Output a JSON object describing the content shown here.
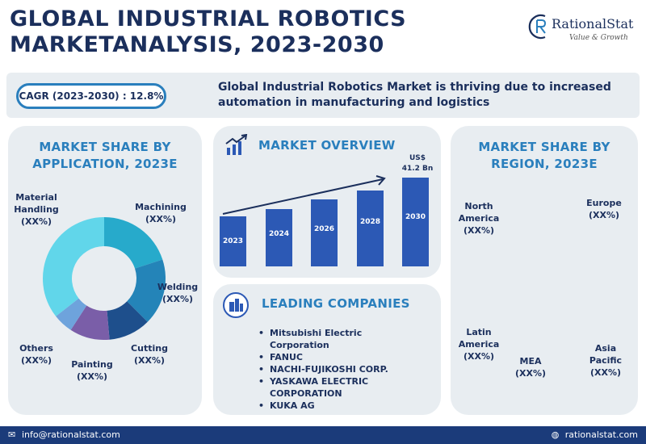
{
  "header": {
    "title_line1": "GLOBAL INDUSTRIAL ROBOTICS",
    "title_line2": "MARKETANALYSIS, 2023-2030",
    "logo_name": "RationalStat",
    "logo_tagline": "Value & Growth"
  },
  "cagr": {
    "label": "CAGR (2023-2030) : 12.8%",
    "statement": "Global Industrial Robotics Market is thriving due to increased automation in manufacturing and logistics"
  },
  "application_panel": {
    "title_line1": "MARKET SHARE BY",
    "title_line2": "APPLICATION, 2023E",
    "labels": {
      "material_handling_1": "Material",
      "material_handling_2": "Handling",
      "machining": "Machining",
      "welding": "Welding",
      "cutting": "Cutting",
      "painting": "Painting",
      "others": "Others",
      "value": "(XX%)"
    }
  },
  "overview_panel": {
    "title": "MARKET OVERVIEW",
    "value_line1": "US$",
    "value_line2": "41.2 Bn",
    "years": [
      "2023",
      "2024",
      "2026",
      "2028",
      "2030"
    ]
  },
  "companies_panel": {
    "title": "LEADING COMPANIES",
    "items": [
      "Mitsubishi Electric",
      "Corporation",
      "FANUC",
      "NACHI-FUJIKOSHI CORP.",
      "YASKAWA ELECTRIC",
      "CORPORATION",
      "KUKA AG"
    ]
  },
  "region_panel": {
    "title_line1": "MARKET SHARE BY",
    "title_line2": "REGION, 2023E",
    "labels": {
      "north_america_1": "North",
      "north_america_2": "America",
      "europe": "Europe",
      "asia_pacific_1": "Asia",
      "asia_pacific_2": "Pacific",
      "mea": "MEA",
      "latin_america_1": "Latin",
      "latin_america_2": "America",
      "value": "(XX%)"
    }
  },
  "footer": {
    "email": "info@rationalstat.com",
    "website": "rationalstat.com"
  },
  "colors": {
    "navy": "#1b2f5c",
    "accent_blue": "#2a7fbd",
    "bar_blue": "#2c59b5",
    "panel_bg": "#e8edf1",
    "footer_bg": "#1b3b7a"
  }
}
